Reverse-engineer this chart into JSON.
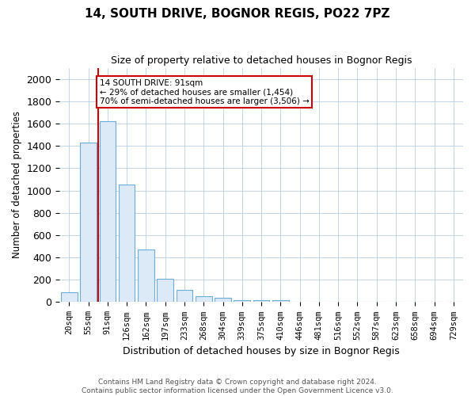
{
  "title1": "14, SOUTH DRIVE, BOGNOR REGIS, PO22 7PZ",
  "title2": "Size of property relative to detached houses in Bognor Regis",
  "xlabel": "Distribution of detached houses by size in Bognor Regis",
  "ylabel": "Number of detached properties",
  "footer1": "Contains HM Land Registry data © Crown copyright and database right 2024.",
  "footer2": "Contains public sector information licensed under the Open Government Licence v3.0.",
  "annotation_line1": "14 SOUTH DRIVE: 91sqm",
  "annotation_line2": "← 29% of detached houses are smaller (1,454)",
  "annotation_line3": "70% of semi-detached houses are larger (3,506) →",
  "bar_color": "#dce9f7",
  "bar_edge_color": "#6aaed6",
  "red_line_color": "#cc0000",
  "annotation_box_color": "#cc0000",
  "categories": [
    "20sqm",
    "55sqm",
    "91sqm",
    "126sqm",
    "162sqm",
    "197sqm",
    "233sqm",
    "268sqm",
    "304sqm",
    "339sqm",
    "375sqm",
    "410sqm",
    "446sqm",
    "481sqm",
    "516sqm",
    "552sqm",
    "587sqm",
    "623sqm",
    "658sqm",
    "694sqm",
    "729sqm"
  ],
  "values": [
    90,
    1430,
    1620,
    1050,
    470,
    210,
    110,
    50,
    40,
    20,
    15,
    20,
    0,
    0,
    0,
    0,
    0,
    0,
    0,
    0,
    0
  ],
  "red_line_index": 1.5,
  "ylim": [
    0,
    2100
  ],
  "yticks": [
    0,
    200,
    400,
    600,
    800,
    1000,
    1200,
    1400,
    1600,
    1800,
    2000
  ],
  "bar_width": 0.85
}
